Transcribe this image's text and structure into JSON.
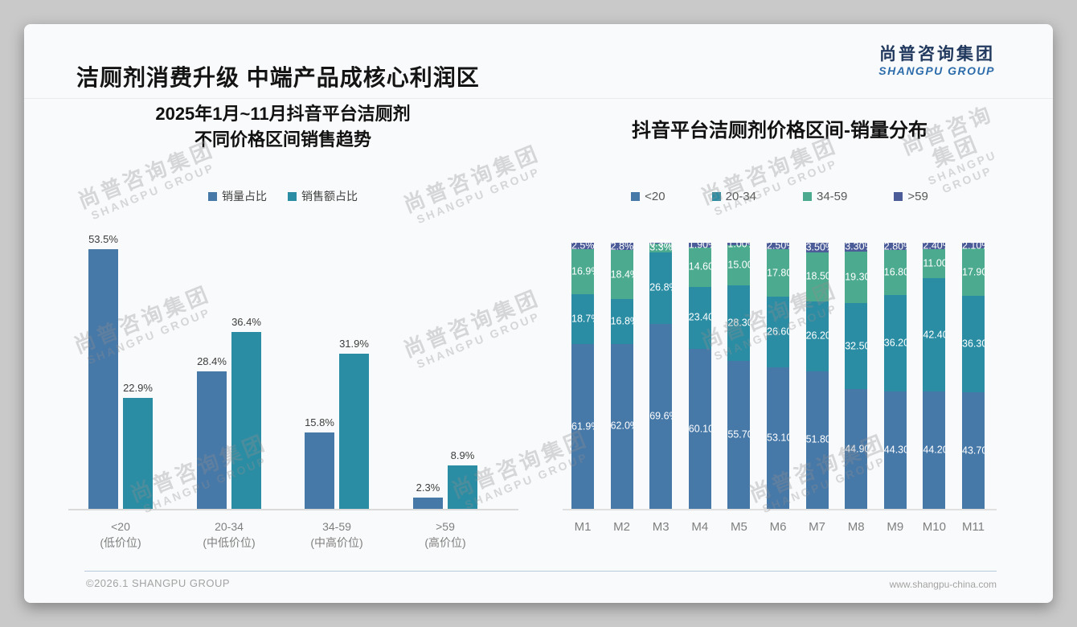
{
  "page": {
    "title": "洁厕剂消费升级 中端产品成核心利润区",
    "logo": {
      "cn": "尚普咨询集团",
      "en": "SHANGPU GROUP"
    },
    "watermark": {
      "cn": "尚普咨询集团",
      "en": "SHANGPU GROUP"
    },
    "footer": {
      "left": "©2026.1 SHANGPU GROUP",
      "right": "www.shangpu-china.com"
    }
  },
  "colors": {
    "blue": "#4678a8",
    "teal": "#2a8da4",
    "green": "#4caa8e",
    "indigo": "#4c5c98",
    "logo_navy": "#21395e",
    "logo_blue": "#2d6cab"
  },
  "chart_data": [
    {
      "type": "bar",
      "title_lines": [
        "2025年1月~11月抖音平台洁厕剂",
        "不同价格区间销售趋势"
      ],
      "categories": [
        [
          "<20",
          "(低价位)"
        ],
        [
          "20-34",
          "(中低价位)"
        ],
        [
          "34-59",
          "(中高价位)"
        ],
        [
          ">59",
          "(高价位)"
        ]
      ],
      "series": [
        {
          "name": "销量占比",
          "color": "#4678a8",
          "values": [
            53.5,
            28.4,
            15.8,
            2.3
          ],
          "labels": [
            "53.5%",
            "28.4%",
            "15.8%",
            "2.3%"
          ]
        },
        {
          "name": "销售额占比",
          "color": "#2a8da4",
          "values": [
            22.9,
            36.4,
            31.9,
            8.9
          ],
          "labels": [
            "22.9%",
            "36.4%",
            "31.9%",
            "8.9%"
          ]
        }
      ],
      "unit": "%",
      "ylim": [
        0,
        55
      ],
      "grid": false,
      "legend_position": "top",
      "value_labels": true
    },
    {
      "type": "stacked-bar",
      "title": "抖音平台洁厕剂价格区间-销量分布",
      "categories": [
        "M1",
        "M2",
        "M3",
        "M4",
        "M5",
        "M6",
        "M7",
        "M8",
        "M9",
        "M10",
        "M11"
      ],
      "series": [
        {
          "name": "<20",
          "color": "#4678a8",
          "values": [
            61.9,
            62.0,
            69.6,
            60.1,
            55.7,
            53.1,
            51.8,
            44.9,
            44.3,
            44.2,
            43.7
          ],
          "labels": [
            "61.9%",
            "62.0%",
            "69.6%",
            "60.10%",
            "55.70%",
            "53.10%",
            "51.80%",
            "44.90%",
            "44.30%",
            "44.20%",
            "43.70%"
          ]
        },
        {
          "name": "20-34",
          "color": "#2a8da4",
          "values": [
            18.7,
            16.8,
            26.8,
            23.4,
            28.3,
            26.6,
            26.2,
            32.5,
            36.2,
            42.4,
            36.3
          ],
          "labels": [
            "18.7%",
            "16.8%",
            "26.8%",
            "23.40%",
            "28.30%",
            "26.60%",
            "26.20%",
            "32.50%",
            "36.20%",
            "42.40%",
            "36.30%"
          ]
        },
        {
          "name": "34-59",
          "color": "#4caa8e",
          "values": [
            16.9,
            18.4,
            3.3,
            14.6,
            15.0,
            17.8,
            18.5,
            19.3,
            16.8,
            11.0,
            17.9
          ],
          "labels": [
            "16.9%",
            "18.4%",
            "3.3%",
            "14.60%",
            "15.00%",
            "17.80%",
            "18.50%",
            "19.30%",
            "16.80%",
            "11.00%",
            "17.90%"
          ]
        },
        {
          "name": ">59",
          "color": "#4c5c98",
          "values": [
            2.5,
            2.8,
            0.3,
            1.9,
            1.0,
            2.5,
            3.5,
            3.3,
            2.8,
            2.4,
            2.1
          ],
          "labels": [
            "2.5%",
            "2.8%",
            "0.3%",
            "1.90%",
            "1.00%",
            "2.50%",
            "3.50%",
            "3.30%",
            "2.80%",
            "2.40%",
            "2.10%"
          ]
        }
      ],
      "unit": "%",
      "ylim": [
        0,
        100
      ],
      "normalized": true,
      "grid": false,
      "legend_position": "top",
      "value_labels": true
    }
  ]
}
